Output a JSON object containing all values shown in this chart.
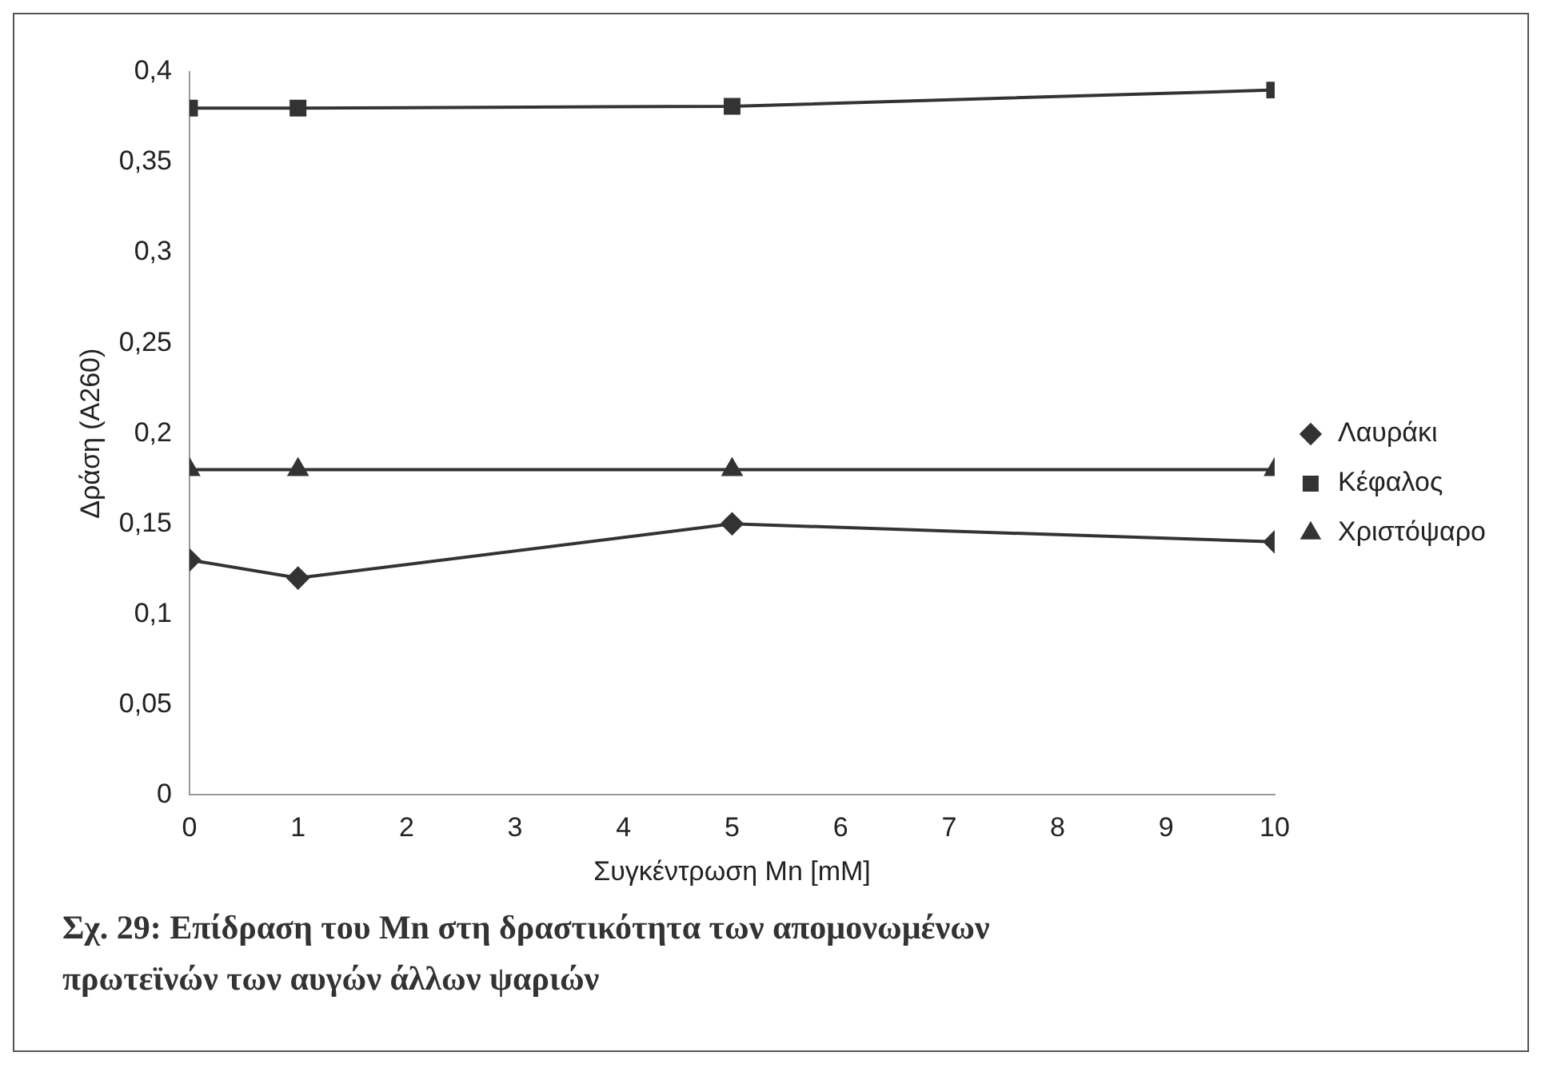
{
  "chart_data": {
    "type": "line",
    "title": "Σχ. 29: Επίδραση του Mn στη δραστικότητα των απομονωμένων πρωτεϊνών των αυγών άλλων ψαριών",
    "xlabel": "Συγκέντρωση Mn [mM]",
    "ylabel": "Δράση (Α260)",
    "x": [
      0,
      1,
      5,
      10
    ],
    "series": [
      {
        "name": "Λαυράκι",
        "color": "#333333",
        "marker": "diamond",
        "values": [
          0.13,
          0.12,
          0.15,
          0.14
        ]
      },
      {
        "name": "Κέφαλος",
        "color": "#333333",
        "marker": "square",
        "values": [
          0.38,
          0.38,
          0.381,
          0.39
        ]
      },
      {
        "name": "Χριστόψαρο",
        "color": "#333333",
        "marker": "triangle",
        "values": [
          0.18,
          0.18,
          0.18,
          0.18
        ]
      }
    ],
    "xlim": [
      0,
      10
    ],
    "xticks": [
      0,
      1,
      2,
      3,
      4,
      5,
      6,
      7,
      8,
      9,
      10
    ],
    "ylim": [
      0,
      0.4
    ],
    "yticks": [
      0,
      {
        "value": 0.05,
        "label": "0,05"
      },
      {
        "value": 0.1,
        "label": "0,1"
      },
      {
        "value": 0.15,
        "label": "0,15"
      },
      {
        "value": 0.2,
        "label": "0,2"
      },
      {
        "value": 0.25,
        "label": "0,25"
      },
      {
        "value": 0.3,
        "label": "0,3"
      },
      {
        "value": 0.35,
        "label": "0,35"
      },
      {
        "value": 0.4,
        "label": "0,4"
      }
    ],
    "grid": false,
    "legend": "right",
    "line_style": "solid"
  }
}
